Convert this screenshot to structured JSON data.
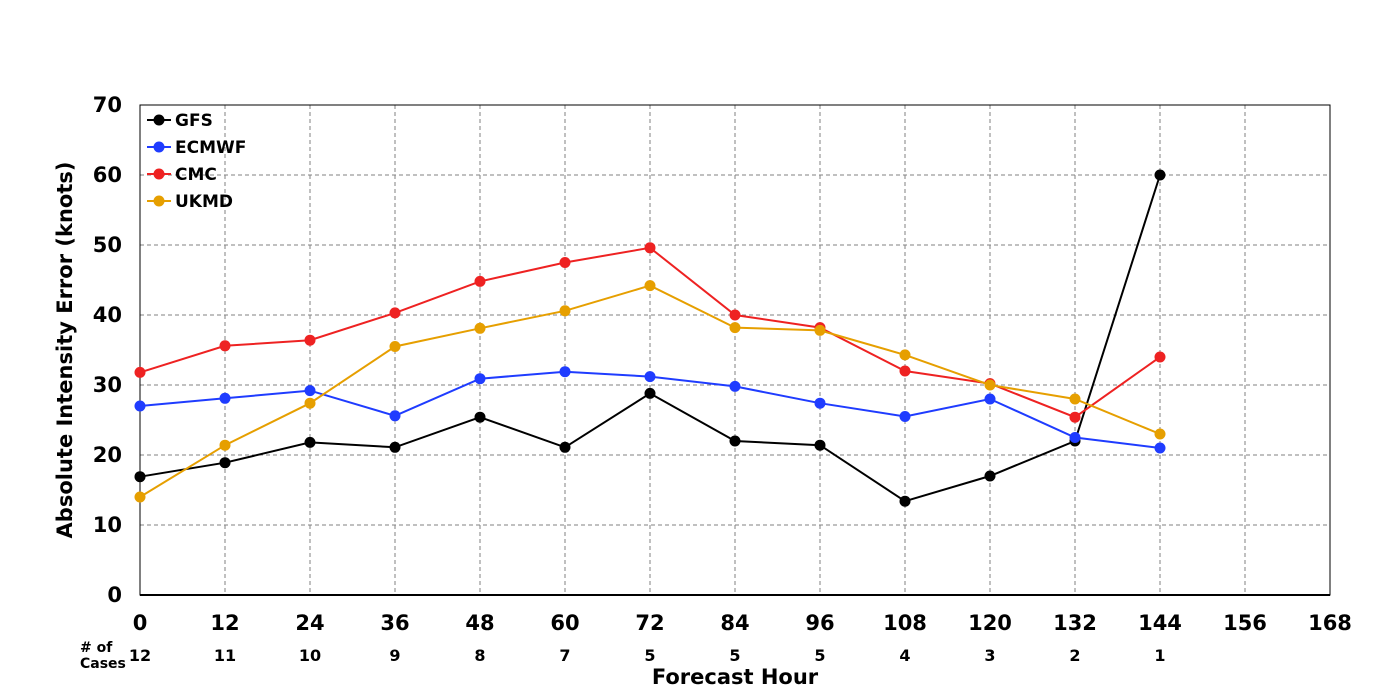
{
  "chart_data": {
    "type": "line",
    "xlabel": "Forecast Hour",
    "ylabel": "Absolute Intensity Error (knots)",
    "xlim": [
      0,
      168
    ],
    "ylim": [
      0,
      70
    ],
    "xticks": [
      0,
      12,
      24,
      36,
      48,
      60,
      72,
      84,
      96,
      108,
      120,
      132,
      144,
      156,
      168
    ],
    "yticks": [
      0,
      10,
      20,
      30,
      40,
      50,
      60,
      70
    ],
    "grid": true,
    "legend_position": "top-left",
    "cases_label_line1": "# of",
    "cases_label_line2": "Cases",
    "cases": [
      {
        "x": 0,
        "n": "12"
      },
      {
        "x": 12,
        "n": "11"
      },
      {
        "x": 24,
        "n": "10"
      },
      {
        "x": 36,
        "n": "9"
      },
      {
        "x": 48,
        "n": "8"
      },
      {
        "x": 60,
        "n": "7"
      },
      {
        "x": 72,
        "n": "5"
      },
      {
        "x": 84,
        "n": "5"
      },
      {
        "x": 96,
        "n": "5"
      },
      {
        "x": 108,
        "n": "4"
      },
      {
        "x": 120,
        "n": "3"
      },
      {
        "x": 132,
        "n": "2"
      },
      {
        "x": 144,
        "n": "1"
      }
    ],
    "x": [
      0,
      12,
      24,
      36,
      48,
      60,
      72,
      84,
      96,
      108,
      120,
      132,
      144
    ],
    "series": [
      {
        "name": "GFS",
        "color": "#000000",
        "values": [
          16.9,
          18.9,
          21.8,
          21.1,
          25.4,
          21.1,
          28.8,
          22.0,
          21.4,
          13.4,
          17.0,
          22.0,
          60.0
        ]
      },
      {
        "name": "ECMWF",
        "color": "#1f3cff",
        "values": [
          27.0,
          28.1,
          29.2,
          25.6,
          30.9,
          31.9,
          31.2,
          29.8,
          27.4,
          25.5,
          28.0,
          22.5,
          21.0
        ]
      },
      {
        "name": "CMC",
        "color": "#ee2222",
        "values": [
          31.8,
          35.6,
          36.4,
          40.3,
          44.8,
          47.5,
          49.6,
          40.0,
          38.2,
          32.0,
          30.2,
          25.4,
          34.0
        ]
      },
      {
        "name": "UKMD",
        "color": "#e69f00",
        "values": [
          14.0,
          21.4,
          27.4,
          35.5,
          38.1,
          40.6,
          44.2,
          38.2,
          37.8,
          34.3,
          30.0,
          28.0,
          23.0
        ]
      }
    ]
  }
}
